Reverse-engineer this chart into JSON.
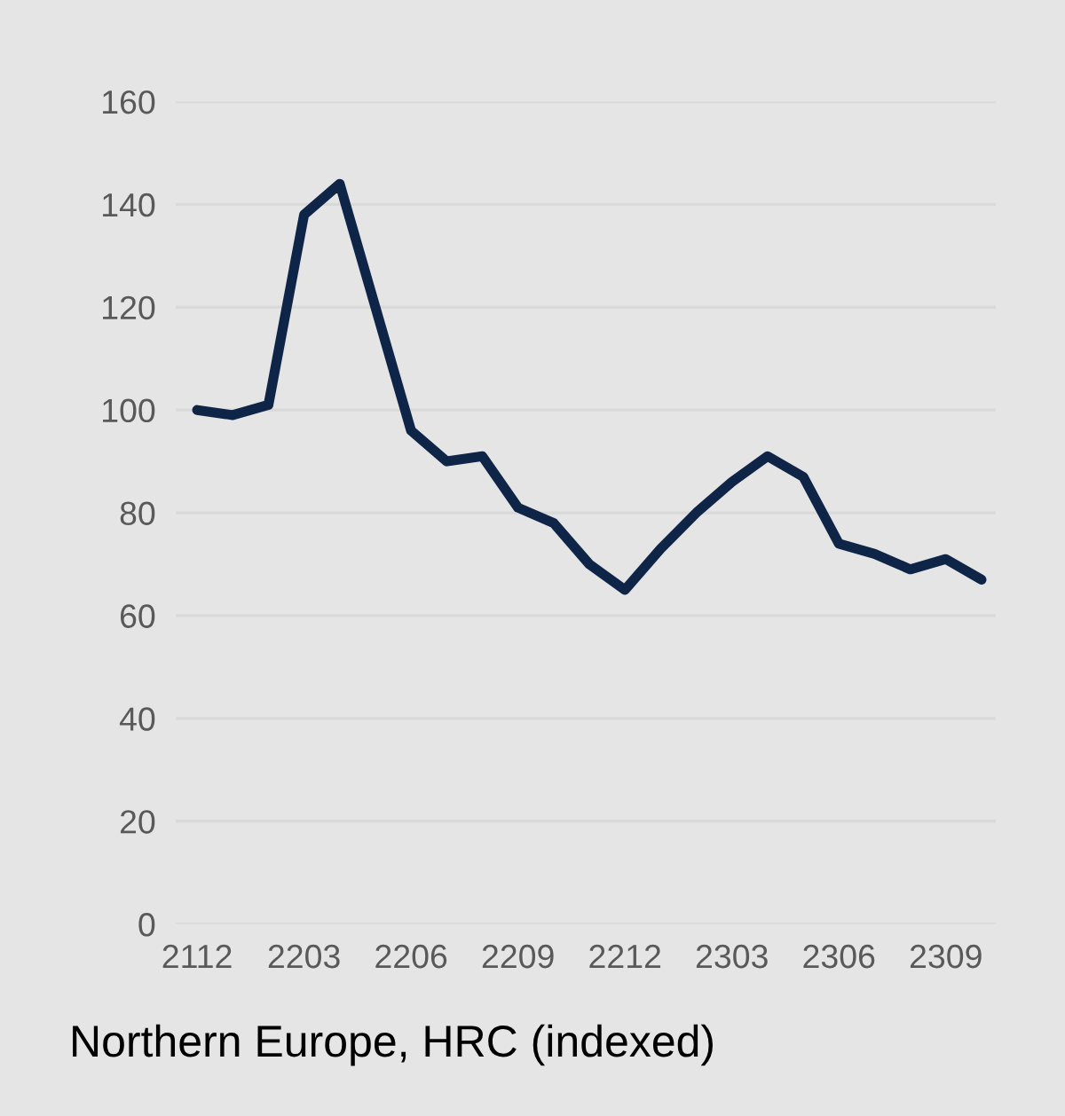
{
  "chart_data": {
    "type": "line",
    "title": "Northern Europe, HRC (indexed)",
    "categories": [
      "2112",
      null,
      null,
      "2203",
      null,
      null,
      "2206",
      null,
      null,
      "2209",
      null,
      null,
      "2212",
      null,
      null,
      "2303",
      null,
      null,
      "2306",
      null,
      null,
      "2309",
      null
    ],
    "series": [
      {
        "color": "#0f2548",
        "values": [
          100,
          99,
          101,
          138,
          144,
          120,
          96,
          90,
          91,
          81,
          78,
          70,
          65,
          73,
          80,
          86,
          91,
          87,
          74,
          72,
          69,
          71,
          67
        ]
      }
    ],
    "ylim": [
      0,
      160
    ],
    "yticks": [
      0,
      20,
      40,
      60,
      80,
      100,
      120,
      140,
      160
    ],
    "grid": "y",
    "marker": "none",
    "line_style": "solid"
  }
}
